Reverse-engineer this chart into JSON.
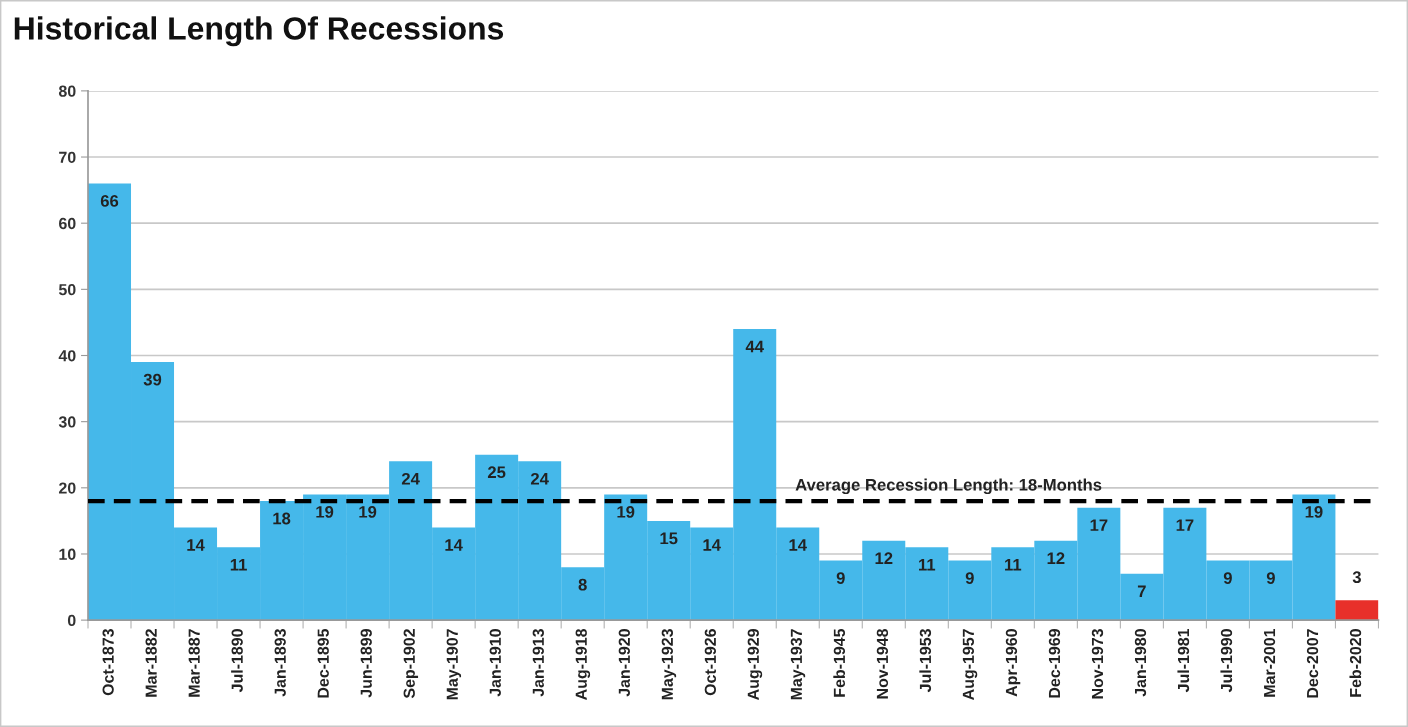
{
  "chart_data": {
    "type": "bar",
    "title": "Historical Length Of Recessions",
    "categories": [
      "Oct-1873",
      "Mar-1882",
      "Mar-1887",
      "Jul-1890",
      "Jan-1893",
      "Dec-1895",
      "Jun-1899",
      "Sep-1902",
      "May-1907",
      "Jan-1910",
      "Jan-1913",
      "Aug-1918",
      "Jan-1920",
      "May-1923",
      "Oct-1926",
      "Aug-1929",
      "May-1937",
      "Feb-1945",
      "Nov-1948",
      "Jul-1953",
      "Aug-1957",
      "Apr-1960",
      "Dec-1969",
      "Nov-1973",
      "Jan-1980",
      "Jul-1981",
      "Jul-1990",
      "Mar-2001",
      "Dec-2007",
      "Feb-2020"
    ],
    "values": [
      66,
      39,
      14,
      11,
      18,
      19,
      19,
      24,
      14,
      25,
      24,
      8,
      19,
      15,
      14,
      44,
      14,
      9,
      12,
      11,
      9,
      11,
      12,
      17,
      7,
      17,
      9,
      9,
      19,
      3
    ],
    "colors": [
      "#45b8ea",
      "#45b8ea",
      "#45b8ea",
      "#45b8ea",
      "#45b8ea",
      "#45b8ea",
      "#45b8ea",
      "#45b8ea",
      "#45b8ea",
      "#45b8ea",
      "#45b8ea",
      "#45b8ea",
      "#45b8ea",
      "#45b8ea",
      "#45b8ea",
      "#45b8ea",
      "#45b8ea",
      "#45b8ea",
      "#45b8ea",
      "#45b8ea",
      "#45b8ea",
      "#45b8ea",
      "#45b8ea",
      "#45b8ea",
      "#45b8ea",
      "#45b8ea",
      "#45b8ea",
      "#45b8ea",
      "#45b8ea",
      "#e8302a"
    ],
    "ylim": [
      0,
      80
    ],
    "yticks": [
      0,
      10,
      20,
      30,
      40,
      50,
      60,
      70,
      80
    ],
    "grid": "y",
    "data_labels": true,
    "ref_lines": [
      {
        "axis": "y",
        "value": 18,
        "label": "Average Recession Length: 18-Months",
        "color": "#000000",
        "line_style": "dashed"
      }
    ]
  }
}
